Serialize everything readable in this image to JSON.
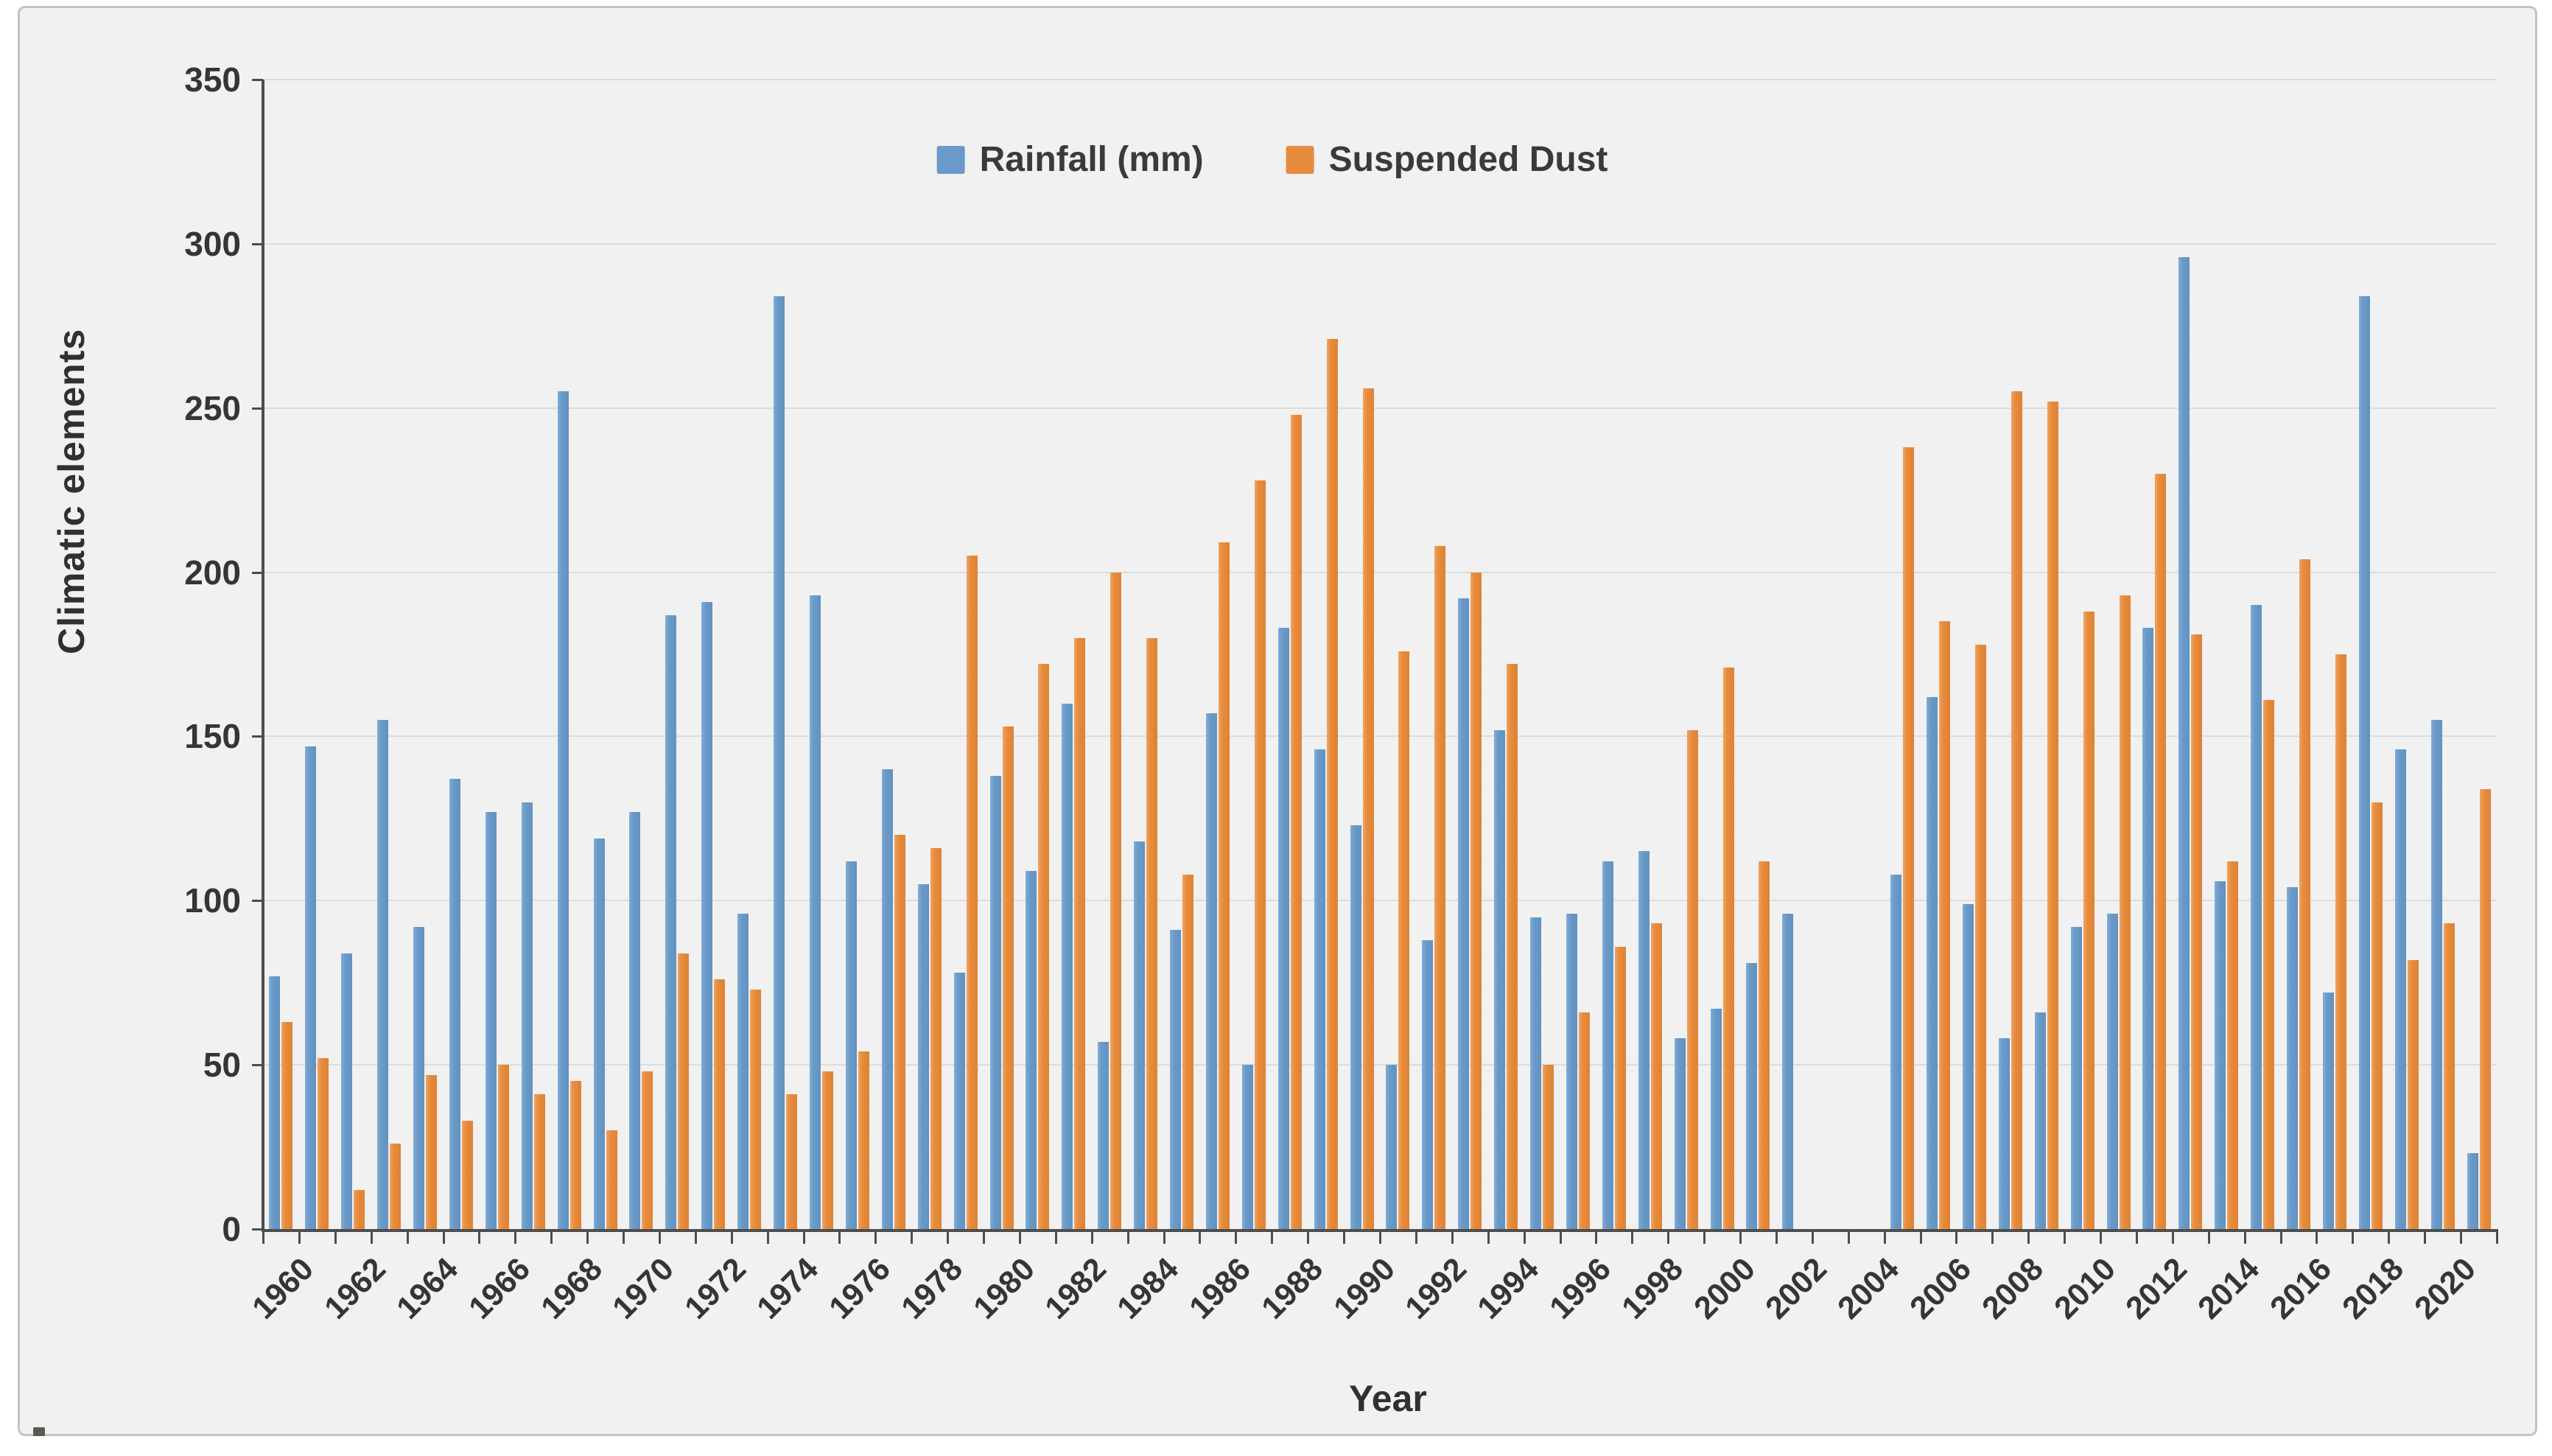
{
  "window": {
    "background": "#ffffff",
    "canvas_color": "#f1f1f2",
    "frame_border_color": "#c3c3c3",
    "axis_color": "#4d4d4d",
    "gridline_color": "#dcdcdc",
    "text_color": "#353535"
  },
  "chart_data": {
    "type": "bar",
    "title": "",
    "xlabel": "Year",
    "ylabel": "Climatic elements",
    "ylim": [
      0,
      350
    ],
    "yticks": [
      0,
      50,
      100,
      150,
      200,
      250,
      300,
      350
    ],
    "xtick_labels": [
      "1960",
      "1962",
      "1964",
      "1966",
      "1968",
      "1970",
      "1972",
      "1974",
      "1976",
      "1978",
      "1980",
      "1982",
      "1984",
      "1986",
      "1988",
      "1990",
      "1992",
      "1994",
      "1996",
      "1998",
      "2000",
      "2002",
      "2004",
      "2006",
      "2008",
      "2010",
      "2012",
      "2014",
      "2016",
      "2018",
      "2020"
    ],
    "grid": true,
    "legend_position": "top-center",
    "categories": [
      1960,
      1961,
      1962,
      1963,
      1964,
      1965,
      1966,
      1967,
      1968,
      1969,
      1970,
      1971,
      1972,
      1973,
      1974,
      1975,
      1976,
      1977,
      1978,
      1979,
      1980,
      1981,
      1982,
      1983,
      1984,
      1985,
      1986,
      1987,
      1988,
      1989,
      1990,
      1991,
      1992,
      1993,
      1994,
      1995,
      1996,
      1997,
      1998,
      1999,
      2000,
      2001,
      2002,
      2003,
      2004,
      2005,
      2006,
      2007,
      2008,
      2009,
      2010,
      2011,
      2012,
      2013,
      2014,
      2015,
      2016,
      2017,
      2018,
      2019,
      2020,
      2021
    ],
    "series": [
      {
        "name": "Rainfall (mm)",
        "color": "#6A9AC9",
        "values": [
          77,
          147,
          84,
          155,
          92,
          137,
          127,
          130,
          255,
          119,
          127,
          187,
          191,
          96,
          284,
          193,
          112,
          140,
          105,
          78,
          138,
          109,
          160,
          57,
          118,
          91,
          157,
          50,
          183,
          146,
          123,
          50,
          88,
          192,
          152,
          95,
          96,
          112,
          115,
          58,
          67,
          81,
          96,
          null,
          null,
          108,
          162,
          99,
          58,
          66,
          92,
          96,
          183,
          296,
          106,
          190,
          104,
          72,
          284,
          146,
          155,
          23
        ]
      },
      {
        "name": "Suspended Dust",
        "color": "#E78C3C",
        "values": [
          63,
          52,
          12,
          26,
          47,
          33,
          50,
          41,
          45,
          30,
          48,
          84,
          76,
          73,
          41,
          48,
          54,
          120,
          116,
          205,
          153,
          172,
          180,
          200,
          180,
          108,
          209,
          228,
          248,
          271,
          256,
          176,
          208,
          200,
          172,
          50,
          66,
          86,
          93,
          152,
          171,
          112,
          null,
          null,
          null,
          238,
          185,
          178,
          255,
          252,
          188,
          193,
          230,
          181,
          112,
          161,
          204,
          175,
          130,
          82,
          93,
          134
        ]
      }
    ]
  }
}
